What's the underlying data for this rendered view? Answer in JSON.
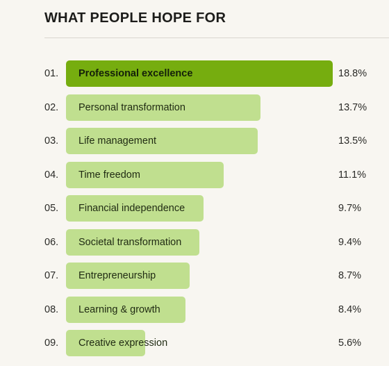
{
  "heading": "WHAT PEOPLE HOPE FOR",
  "colors": {
    "background": "#f8f6f1",
    "top_bar": "#76ad0f",
    "bar": "#c0df8f",
    "divider": "#d9d6cf"
  },
  "chart_data": {
    "type": "bar",
    "orientation": "horizontal",
    "title": "WHAT PEOPLE HOPE FOR",
    "unit": "%",
    "ranks": [
      "01.",
      "02.",
      "03.",
      "04.",
      "05.",
      "06.",
      "07.",
      "08.",
      "09."
    ],
    "categories": [
      "Professional excellence",
      "Personal transformation",
      "Life management",
      "Time freedom",
      "Financial independence",
      "Societal transformation",
      "Entrepreneurship",
      "Learning & growth",
      "Creative expression"
    ],
    "values": [
      18.8,
      13.7,
      13.5,
      11.1,
      9.7,
      9.4,
      8.7,
      8.4,
      5.6
    ],
    "value_labels": [
      "18.8%",
      "13.7%",
      "13.5%",
      "11.1%",
      "9.7%",
      "9.4%",
      "8.7%",
      "8.4%",
      "5.6%"
    ],
    "highlighted_index": 0,
    "grid": false,
    "legend": "none"
  }
}
